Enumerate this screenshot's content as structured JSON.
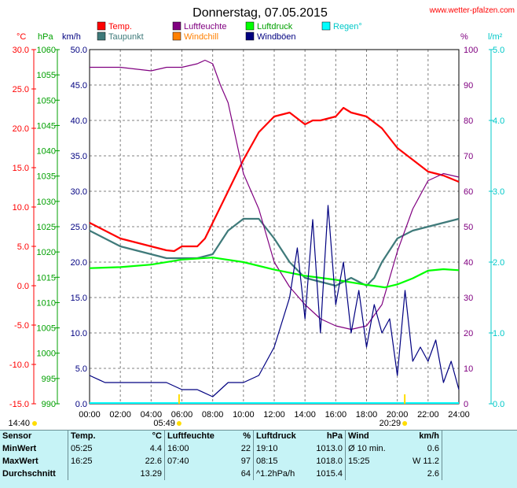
{
  "title": "Donnerstag, 07.05.2015",
  "source": "www.wetter-pfalzen.com",
  "axes": {
    "celsius_label": "°C",
    "hpa_label": "hPa",
    "kmh_label": "km/h",
    "percent_label": "%",
    "lm2_label": "l/m²",
    "celsius_ticks": [
      "30.0",
      "25.0",
      "20.0",
      "15.0",
      "10.0",
      "5.0",
      "0.0",
      "-5.0",
      "-10.0",
      "-15.0"
    ],
    "hpa_ticks": [
      "1060",
      "1055",
      "1050",
      "1045",
      "1040",
      "1035",
      "1030",
      "1025",
      "1020",
      "1015",
      "1010",
      "1005",
      "1000",
      "995",
      "990"
    ],
    "kmh_ticks": [
      "50.0",
      "45.0",
      "40.0",
      "35.0",
      "30.0",
      "25.0",
      "20.0",
      "15.0",
      "10.0",
      "5.0",
      "0.0"
    ],
    "percent_ticks": [
      "100",
      "90",
      "80",
      "70",
      "60",
      "50",
      "40",
      "30",
      "20",
      "10",
      "0"
    ],
    "lm2_ticks": [
      "5.0",
      "4.0",
      "3.0",
      "2.0",
      "1.0",
      "0.0"
    ],
    "x_ticks": [
      "00:00",
      "02:00",
      "04:00",
      "06:00",
      "08:00",
      "10:00",
      "12:00",
      "14:00",
      "16:00",
      "18:00",
      "20:00",
      "22:00",
      "24:00"
    ]
  },
  "legend": [
    {
      "label": "Temp.",
      "color": "#ff0000"
    },
    {
      "label": "Taupunkt",
      "color": "#3f7a7a"
    },
    {
      "label": "Luftfeuchte",
      "color": "#800080"
    },
    {
      "label": "Windchill",
      "color": "#ff8000"
    },
    {
      "label": "Luftdruck",
      "color": "#00ff00"
    },
    {
      "label": "Windböen",
      "color": "#000080"
    },
    {
      "label": "Regen°",
      "color": "#00ffff"
    }
  ],
  "sun": {
    "sunrise": "05:49",
    "sunset": "20:29",
    "left_label": "14:40"
  },
  "colors": {
    "temp": "#ff0000",
    "dew": "#3f7a7a",
    "humidity": "#800080",
    "windchill": "#ff8000",
    "pressure": "#00ff00",
    "wind": "#000080",
    "rain": "#00ffff",
    "stats_bg": "#c6f3f6",
    "celsius_axis": "#ff0000",
    "hpa_axis": "#00a000",
    "kmh_axis": "#000080",
    "percent_axis": "#800080",
    "lm2_axis": "#00c8c8"
  },
  "chart_data": {
    "type": "line",
    "title": "Donnerstag, 07.05.2015",
    "x_unit": "hour",
    "xlim": [
      0,
      24
    ],
    "series": [
      {
        "name": "Temp.",
        "axis": "°C",
        "ylim": [
          -15,
          30
        ],
        "x": [
          0,
          1,
          2,
          3,
          4,
          5,
          5.5,
          6,
          7,
          7.5,
          8,
          9,
          10,
          11,
          12,
          13,
          14,
          14.5,
          15,
          16,
          16.5,
          17,
          18,
          19,
          20,
          21,
          22,
          23,
          24
        ],
        "y": [
          8,
          7,
          6,
          5.5,
          5,
          4.5,
          4.4,
          5,
          5,
          6,
          8,
          12,
          16,
          19.5,
          21.5,
          22,
          20.5,
          21,
          21,
          21.5,
          22.6,
          22,
          21.5,
          20,
          17.5,
          16,
          14.5,
          14,
          13.2
        ]
      },
      {
        "name": "Taupunkt",
        "axis": "°C",
        "ylim": [
          -15,
          30
        ],
        "x": [
          0,
          1,
          2,
          3,
          4,
          5,
          6,
          7,
          8,
          9,
          10,
          11,
          12,
          13,
          14,
          15,
          16,
          17,
          18,
          18.5,
          19,
          20,
          21,
          22,
          23,
          24
        ],
        "y": [
          7,
          6,
          5,
          4.5,
          4,
          3.5,
          3.5,
          3.5,
          4,
          7,
          8.5,
          8.5,
          6,
          3,
          1,
          0.5,
          0,
          1,
          0,
          1,
          3,
          6,
          7,
          7.5,
          8,
          8.5
        ]
      },
      {
        "name": "Luftfeuchte",
        "axis": "%",
        "ylim": [
          0,
          100
        ],
        "x": [
          0,
          2,
          4,
          5,
          6,
          7,
          7.5,
          8,
          8.5,
          9,
          10,
          11,
          12,
          13,
          14,
          15,
          16,
          17,
          18,
          19,
          20,
          21,
          22,
          23,
          24
        ],
        "y": [
          95,
          95,
          94,
          95,
          95,
          96,
          97,
          96,
          90,
          85,
          65,
          55,
          40,
          33,
          28,
          24,
          22,
          21,
          22,
          28,
          43,
          55,
          63,
          65,
          64
        ]
      },
      {
        "name": "Luftdruck",
        "axis": "hPa",
        "ylim": [
          990,
          1060
        ],
        "x": [
          0,
          2,
          4,
          6,
          8,
          10,
          12,
          14,
          16,
          18,
          19.2,
          20,
          21,
          22,
          23,
          24
        ],
        "y": [
          1016.8,
          1017,
          1017.5,
          1018.5,
          1018.9,
          1018,
          1016.5,
          1015.3,
          1014.5,
          1013.5,
          1013,
          1013.6,
          1014.8,
          1016.3,
          1016.6,
          1016.4
        ]
      },
      {
        "name": "Windböen",
        "axis": "km/h",
        "ylim": [
          0,
          50
        ],
        "x": [
          0,
          1,
          2,
          3,
          4,
          5,
          6,
          7,
          8,
          9,
          10,
          11,
          12,
          13,
          13.5,
          14,
          14.5,
          15,
          15.5,
          16,
          16.5,
          17,
          17.5,
          18,
          18.5,
          19,
          19.5,
          20,
          20.5,
          21,
          21.5,
          22,
          22.5,
          23,
          23.5,
          24
        ],
        "y": [
          4,
          3,
          3,
          3,
          3,
          3,
          2,
          2,
          1,
          3,
          3,
          4,
          8,
          15,
          22,
          12,
          26,
          10,
          28,
          14,
          20,
          10,
          16,
          8,
          14,
          10,
          12,
          4,
          16,
          6,
          8,
          6,
          9,
          3,
          6,
          2
        ]
      }
    ]
  },
  "stats": {
    "headers": [
      "Sensor",
      "Temp.",
      "°C",
      "Luftfeuchte",
      "%",
      "Luftdruck",
      "hPa",
      "Wind",
      "km/h"
    ],
    "rows": [
      {
        "label": "MinWert",
        "t_time": "05:25",
        "t_val": "4.4",
        "h_time": "16:00",
        "h_val": "22",
        "p_time": "19:10",
        "p_val": "1013.0",
        "w_text": "Ø 10 min.",
        "w_val": "0.6"
      },
      {
        "label": "MaxWert",
        "t_time": "16:25",
        "t_val": "22.6",
        "h_time": "07:40",
        "h_val": "97",
        "p_time": "08:15",
        "p_val": "1018.0",
        "w_text": "15:25",
        "w_dir": "W",
        "w_val": "11.2"
      },
      {
        "label": "Durchschnitt",
        "t_time": "",
        "t_val": "13.29",
        "h_time": "",
        "h_val": "64",
        "p_time": "^1.2hPa/h",
        "p_val": "1015.4",
        "w_text": "",
        "w_val": "2.6"
      }
    ]
  }
}
